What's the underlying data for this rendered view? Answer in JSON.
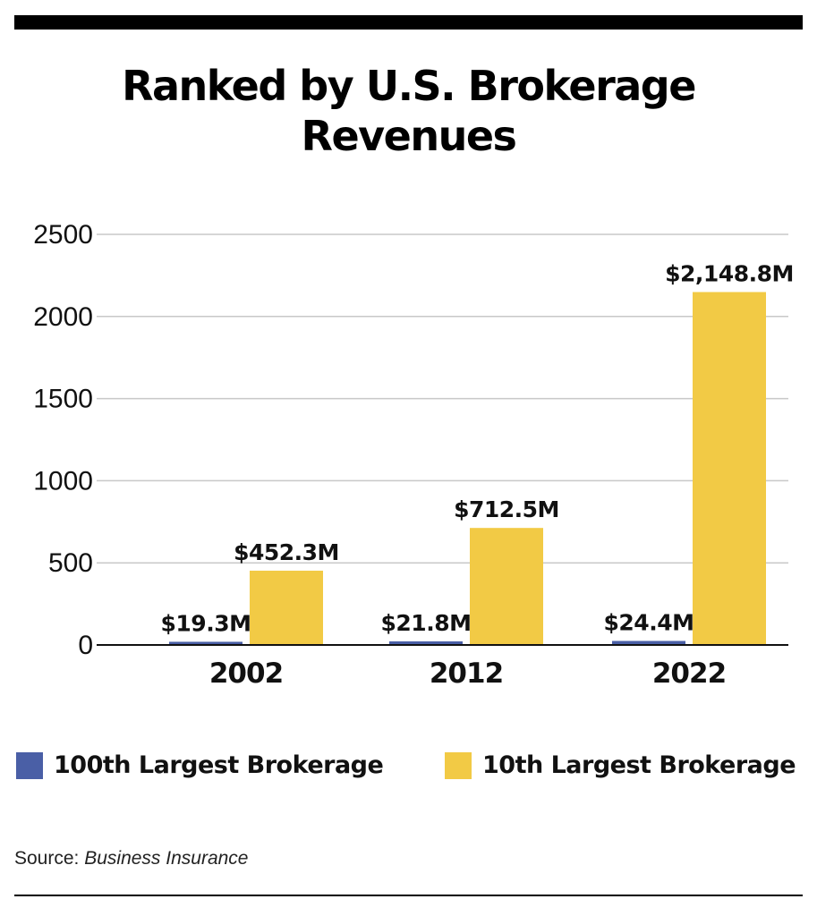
{
  "chart_data": {
    "type": "bar",
    "title": "Ranked by U.S. Brokerage Revenues",
    "title_lines": [
      "Ranked by U.S. Brokerage",
      "Revenues"
    ],
    "categories": [
      "2002",
      "2012",
      "2022"
    ],
    "series": [
      {
        "name": "100th Largest Brokerage",
        "color": "#4a5fa6",
        "values": [
          19.3,
          21.8,
          24.4
        ],
        "labels": [
          "$19.3M",
          "$21.8M",
          "$24.4M"
        ]
      },
      {
        "name": "10th Largest Brokerage",
        "color": "#f2ca45",
        "values": [
          452.3,
          712.5,
          2148.8
        ],
        "labels": [
          "$452.3M",
          "$712.5M",
          "$2,148.8M"
        ]
      }
    ],
    "ylim": [
      0,
      2500
    ],
    "yticks": [
      0,
      500,
      1000,
      1500,
      2000,
      2500
    ],
    "grid": true,
    "legend_position": "bottom"
  },
  "source": {
    "prefix": "Source: ",
    "name": "Business Insurance"
  }
}
